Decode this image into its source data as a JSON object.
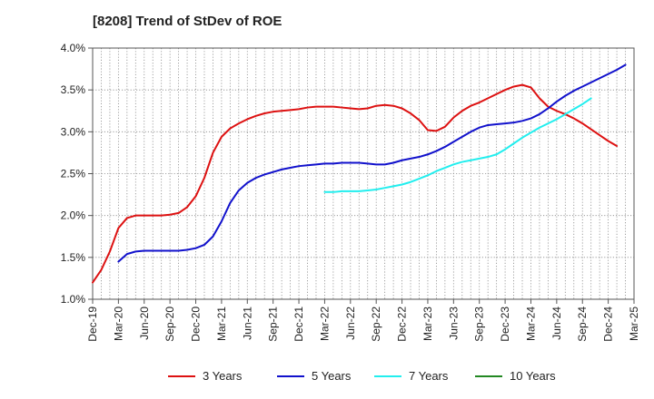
{
  "chart_data": {
    "type": "line",
    "title": "[8208]  Trend of StDev of ROE",
    "xlabel": "",
    "ylabel": "",
    "y_tick_labels": [
      "1.0%",
      "1.5%",
      "2.0%",
      "2.5%",
      "3.0%",
      "3.5%",
      "4.0%"
    ],
    "y_tick_values": [
      1.0,
      1.5,
      2.0,
      2.5,
      3.0,
      3.5,
      4.0
    ],
    "ylim": [
      1.0,
      4.0
    ],
    "x_tick_labels": [
      "Dec-19",
      "Mar-20",
      "Jun-20",
      "Sep-20",
      "Dec-20",
      "Mar-21",
      "Jun-21",
      "Sep-21",
      "Dec-21",
      "Mar-22",
      "Jun-22",
      "Sep-22",
      "Dec-22",
      "Mar-23",
      "Jun-23",
      "Sep-23",
      "Dec-23",
      "Mar-24",
      "Jun-24",
      "Sep-24",
      "Dec-24",
      "Mar-25"
    ],
    "grid": true,
    "legend_position": "bottom",
    "series": [
      {
        "name": "3 Years",
        "color": "#dd1111",
        "start_index": 0,
        "values": [
          1.2,
          1.35,
          1.57,
          1.85,
          1.97,
          2.0,
          2.0,
          2.0,
          2.0,
          2.01,
          2.03,
          2.1,
          2.23,
          2.45,
          2.75,
          2.94,
          3.04,
          3.1,
          3.15,
          3.19,
          3.22,
          3.24,
          3.25,
          3.26,
          3.27,
          3.29,
          3.3,
          3.3,
          3.3,
          3.29,
          3.28,
          3.27,
          3.28,
          3.31,
          3.32,
          3.31,
          3.28,
          3.22,
          3.14,
          3.02,
          3.01,
          3.06,
          3.17,
          3.25,
          3.31,
          3.35,
          3.4,
          3.45,
          3.5,
          3.54,
          3.56,
          3.53,
          3.4,
          3.3,
          3.25,
          3.21,
          3.16,
          3.1,
          3.03,
          2.96,
          2.89,
          2.83
        ]
      },
      {
        "name": "5 Years",
        "color": "#1111cc",
        "start_index": 3,
        "values": [
          1.45,
          1.54,
          1.57,
          1.58,
          1.58,
          1.58,
          1.58,
          1.58,
          1.59,
          1.61,
          1.65,
          1.75,
          1.93,
          2.15,
          2.3,
          2.39,
          2.45,
          2.49,
          2.52,
          2.55,
          2.57,
          2.59,
          2.6,
          2.61,
          2.62,
          2.62,
          2.63,
          2.63,
          2.63,
          2.62,
          2.61,
          2.61,
          2.63,
          2.66,
          2.68,
          2.7,
          2.73,
          2.77,
          2.82,
          2.88,
          2.94,
          3.0,
          3.05,
          3.08,
          3.09,
          3.1,
          3.11,
          3.13,
          3.16,
          3.21,
          3.28,
          3.36,
          3.43,
          3.49,
          3.54,
          3.59,
          3.64,
          3.69,
          3.74,
          3.8
        ]
      },
      {
        "name": "7 Years",
        "color": "#22eeee",
        "start_index": 27,
        "values": [
          2.28,
          2.28,
          2.29,
          2.29,
          2.29,
          2.3,
          2.31,
          2.33,
          2.35,
          2.37,
          2.4,
          2.44,
          2.48,
          2.53,
          2.57,
          2.61,
          2.64,
          2.66,
          2.68,
          2.7,
          2.73,
          2.79,
          2.86,
          2.93,
          2.99,
          3.05,
          3.1,
          3.15,
          3.21,
          3.27,
          3.33,
          3.4
        ]
      },
      {
        "name": "10 Years",
        "color": "#228822",
        "start_index": 0,
        "values": []
      }
    ]
  }
}
